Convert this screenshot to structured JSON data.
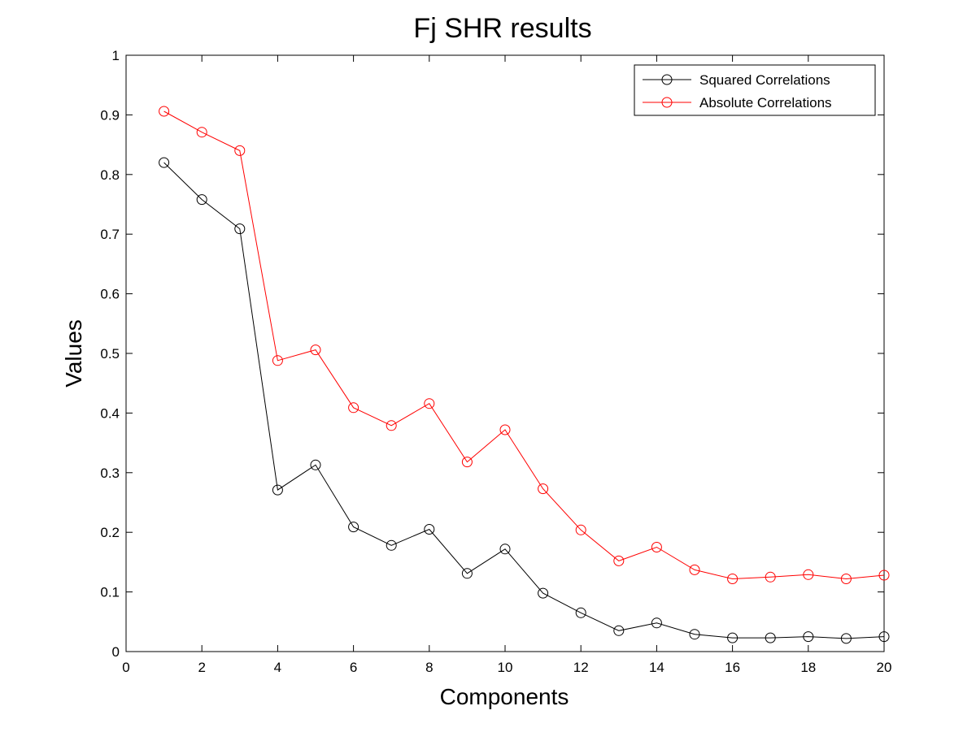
{
  "chart_data": {
    "type": "line",
    "title": "Fj SHR results",
    "xlabel": "Components",
    "ylabel": "Values",
    "xlim": [
      0,
      20
    ],
    "ylim": [
      0,
      1
    ],
    "xticks": [
      0,
      2,
      4,
      6,
      8,
      10,
      12,
      14,
      16,
      18,
      20
    ],
    "yticks": [
      0,
      0.1,
      0.2,
      0.3,
      0.4,
      0.5,
      0.6,
      0.7,
      0.8,
      0.9,
      1
    ],
    "xtick_labels": [
      "0",
      "2",
      "4",
      "6",
      "8",
      "10",
      "12",
      "14",
      "16",
      "18",
      "20"
    ],
    "ytick_labels": [
      "0",
      "0.1",
      "0.2",
      "0.3",
      "0.4",
      "0.5",
      "0.6",
      "0.7",
      "0.8",
      "0.9",
      "1"
    ],
    "grid": false,
    "legend_position": "top-right",
    "x": [
      1,
      2,
      3,
      4,
      5,
      6,
      7,
      8,
      9,
      10,
      11,
      12,
      13,
      14,
      15,
      16,
      17,
      18,
      19,
      20
    ],
    "series": [
      {
        "name": "Squared Correlations",
        "color": "#000000",
        "marker": "circle-open",
        "values": [
          0.82,
          0.758,
          0.709,
          0.271,
          0.313,
          0.209,
          0.178,
          0.205,
          0.131,
          0.172,
          0.098,
          0.065,
          0.035,
          0.048,
          0.029,
          0.023,
          0.023,
          0.025,
          0.022,
          0.025
        ]
      },
      {
        "name": "Absolute Correlations",
        "color": "#ff0000",
        "marker": "circle-open",
        "values": [
          0.906,
          0.871,
          0.84,
          0.488,
          0.506,
          0.409,
          0.379,
          0.416,
          0.318,
          0.372,
          0.273,
          0.204,
          0.152,
          0.175,
          0.137,
          0.122,
          0.125,
          0.129,
          0.122,
          0.128
        ]
      }
    ]
  }
}
